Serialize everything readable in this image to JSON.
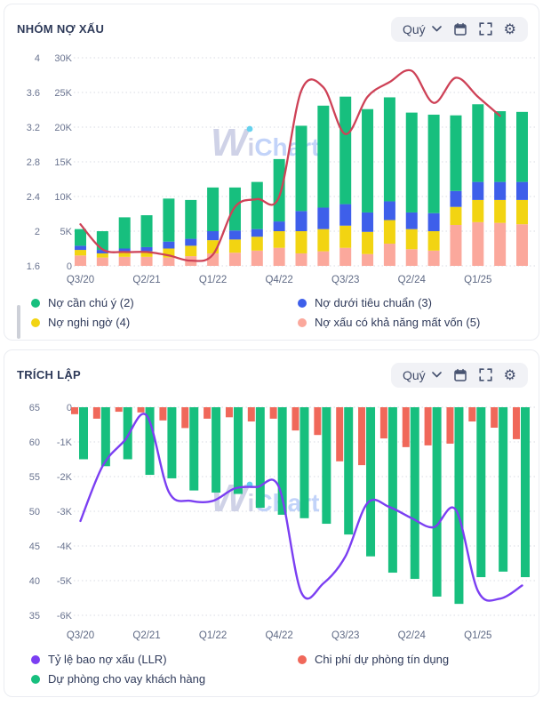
{
  "cards": [
    {
      "title": "NHÓM NỢ XẤU",
      "toolbar": {
        "period": "Quý"
      },
      "legend": [
        {
          "label": "Nợ cần chú ý (2)",
          "color": "#17bf7e"
        },
        {
          "label": "Nợ dưới tiêu chuẩn (3)",
          "color": "#3e5fea"
        },
        {
          "label": "Nợ nghi ngờ (4)",
          "color": "#f2d412"
        },
        {
          "label": "Nợ xấu có khả năng mất vốn (5)",
          "color": "#fba89c"
        }
      ]
    },
    {
      "title": "TRÍCH LẬP",
      "toolbar": {
        "period": "Quý"
      },
      "legend": [
        {
          "label": "Tỷ lệ bao nợ xấu (LLR)",
          "color": "#7b3ff2"
        },
        {
          "label": "Chi phí dự phòng tín dụng",
          "color": "#f0685a"
        },
        {
          "label": "Dự phòng cho vay khách hàng",
          "color": "#17bf7e"
        }
      ]
    }
  ],
  "watermark": {
    "part1": "W",
    "part2": "i",
    "part3": "Chart",
    "w_color": "#c4c8e2",
    "chart_color": "#b4c9f8",
    "dot_color": "#41c7ea"
  },
  "chart_data": [
    {
      "type": "bar",
      "title": "NHÓM NỢ XẤU",
      "stacked": true,
      "categories": [
        "Q3/20",
        "Q4/20",
        "Q1/21",
        "Q2/21",
        "Q3/21",
        "Q4/21",
        "Q1/22",
        "Q2/22",
        "Q3/22",
        "Q4/22",
        "Q1/23",
        "Q2/23",
        "Q3/23",
        "Q4/23",
        "Q1/24",
        "Q2/24",
        "Q3/24",
        "Q4/24",
        "Q1/25",
        "Q2/25",
        "Q3/25"
      ],
      "x_tick_every": 3,
      "series": [
        {
          "name": "Nợ xấu có khả năng mất vốn (5)",
          "color": "#fba89c",
          "values": [
            1.5,
            1.2,
            1.3,
            1.3,
            1.2,
            1.4,
            1.8,
            1.9,
            2.2,
            2.6,
            1.8,
            2.1,
            2.6,
            1.7,
            3.2,
            2.4,
            2.2,
            5.9,
            6.3,
            6.2,
            6.0
          ]
        },
        {
          "name": "Nợ nghi ngờ (4)",
          "color": "#f2d412",
          "values": [
            0.8,
            0.6,
            0.6,
            0.8,
            1.3,
            1.5,
            1.9,
            1.9,
            2.0,
            2.4,
            3.2,
            3.2,
            3.2,
            3.2,
            3.4,
            2.9,
            2.8,
            2.6,
            3.2,
            3.3,
            3.5
          ]
        },
        {
          "name": "Nợ dưới tiêu chuẩn (3)",
          "color": "#3e5fea",
          "values": [
            0.6,
            0.5,
            0.6,
            0.6,
            1.0,
            1.0,
            1.3,
            1.3,
            1.1,
            1.4,
            2.9,
            3.1,
            3.1,
            2.8,
            2.7,
            2.4,
            2.6,
            2.3,
            2.6,
            2.6,
            2.6
          ]
        },
        {
          "name": "Nợ cần chú ý (2)",
          "color": "#17bf7e",
          "values": [
            2.4,
            2.7,
            4.5,
            4.6,
            6.2,
            5.6,
            6.3,
            6.2,
            6.8,
            9.0,
            12.3,
            14.7,
            15.5,
            14.9,
            15.0,
            14.4,
            14.2,
            10.9,
            11.2,
            10.2,
            10.1
          ]
        }
      ],
      "line": {
        "color": "#ce4257",
        "min": 1.6,
        "max": 4,
        "values": [
          2.08,
          1.79,
          1.76,
          1.76,
          1.72,
          1.66,
          1.73,
          2.28,
          2.37,
          2.4,
          3.62,
          3.66,
          3.12,
          3.55,
          3.72,
          3.85,
          3.48,
          3.77,
          3.55,
          3.33,
          null
        ]
      },
      "left_axis_pct": {
        "labels": [
          "4",
          "3.6",
          "3.2",
          "2.8",
          "2.4",
          "2",
          "1.6"
        ],
        "min": 1.6,
        "max": 4
      },
      "left_axis_val": {
        "labels": [
          "30K",
          "25K",
          "20K",
          "15K",
          "10K",
          "5K",
          "0"
        ],
        "min": 0,
        "max": 30
      },
      "ylim_bars": [
        0,
        30
      ],
      "ylim_line": [
        1.6,
        4
      ],
      "grid": "dotted",
      "legend_position": "bottom"
    },
    {
      "type": "bar",
      "title": "TRÍCH LẬP",
      "stacked": false,
      "categories": [
        "Q3/20",
        "Q4/20",
        "Q1/21",
        "Q2/21",
        "Q3/21",
        "Q4/21",
        "Q1/22",
        "Q2/22",
        "Q3/22",
        "Q4/22",
        "Q1/23",
        "Q2/23",
        "Q3/23",
        "Q4/23",
        "Q1/24",
        "Q2/24",
        "Q3/24",
        "Q4/24",
        "Q1/25",
        "Q2/25",
        "Q3/25"
      ],
      "x_tick_every": 3,
      "series": [
        {
          "name": "Chi phí dự phòng tín dụng",
          "color": "#f0685a",
          "values": [
            -0.2,
            -0.33,
            -0.13,
            -0.15,
            -0.38,
            -0.6,
            -0.33,
            -0.29,
            -0.41,
            -0.33,
            -0.67,
            -0.8,
            -1.56,
            -1.67,
            -0.9,
            -1.15,
            -1.1,
            -1.05,
            -0.41,
            -0.59,
            -0.92
          ]
        },
        {
          "name": "Dự phòng cho vay khách hàng",
          "color": "#17bf7e",
          "values": [
            -1.5,
            -1.7,
            -1.5,
            -1.95,
            -2.05,
            -2.4,
            -2.46,
            -2.5,
            -2.9,
            -3.1,
            -3.2,
            -3.36,
            -3.67,
            -4.3,
            -4.77,
            -4.95,
            -5.46,
            -5.67,
            -4.9,
            -4.74,
            -4.9
          ]
        }
      ],
      "line": {
        "name": "Tỷ lệ bao nợ xấu (LLR)",
        "color": "#7b3ff2",
        "min": 35,
        "max": 65,
        "values": [
          48.6,
          56.5,
          60.2,
          63.8,
          52.8,
          51.5,
          51.5,
          53.3,
          53.5,
          53.4,
          38.3,
          39.6,
          43.5,
          51.2,
          50.6,
          49.0,
          47.7,
          50.2,
          38.5,
          37.4,
          39.3
        ]
      },
      "left_axis_pct": {
        "labels": [
          "65",
          "60",
          "55",
          "50",
          "45",
          "40",
          "35"
        ],
        "min": 35,
        "max": 65
      },
      "left_axis_val": {
        "labels": [
          "0",
          "-1K",
          "-2K",
          "-3K",
          "-4K",
          "-5K",
          "-6K"
        ],
        "min": -6,
        "max": 0
      },
      "ylim_bars": [
        -6,
        0
      ],
      "ylim_line": [
        35,
        65
      ],
      "grid": "dotted",
      "legend_position": "bottom"
    }
  ]
}
